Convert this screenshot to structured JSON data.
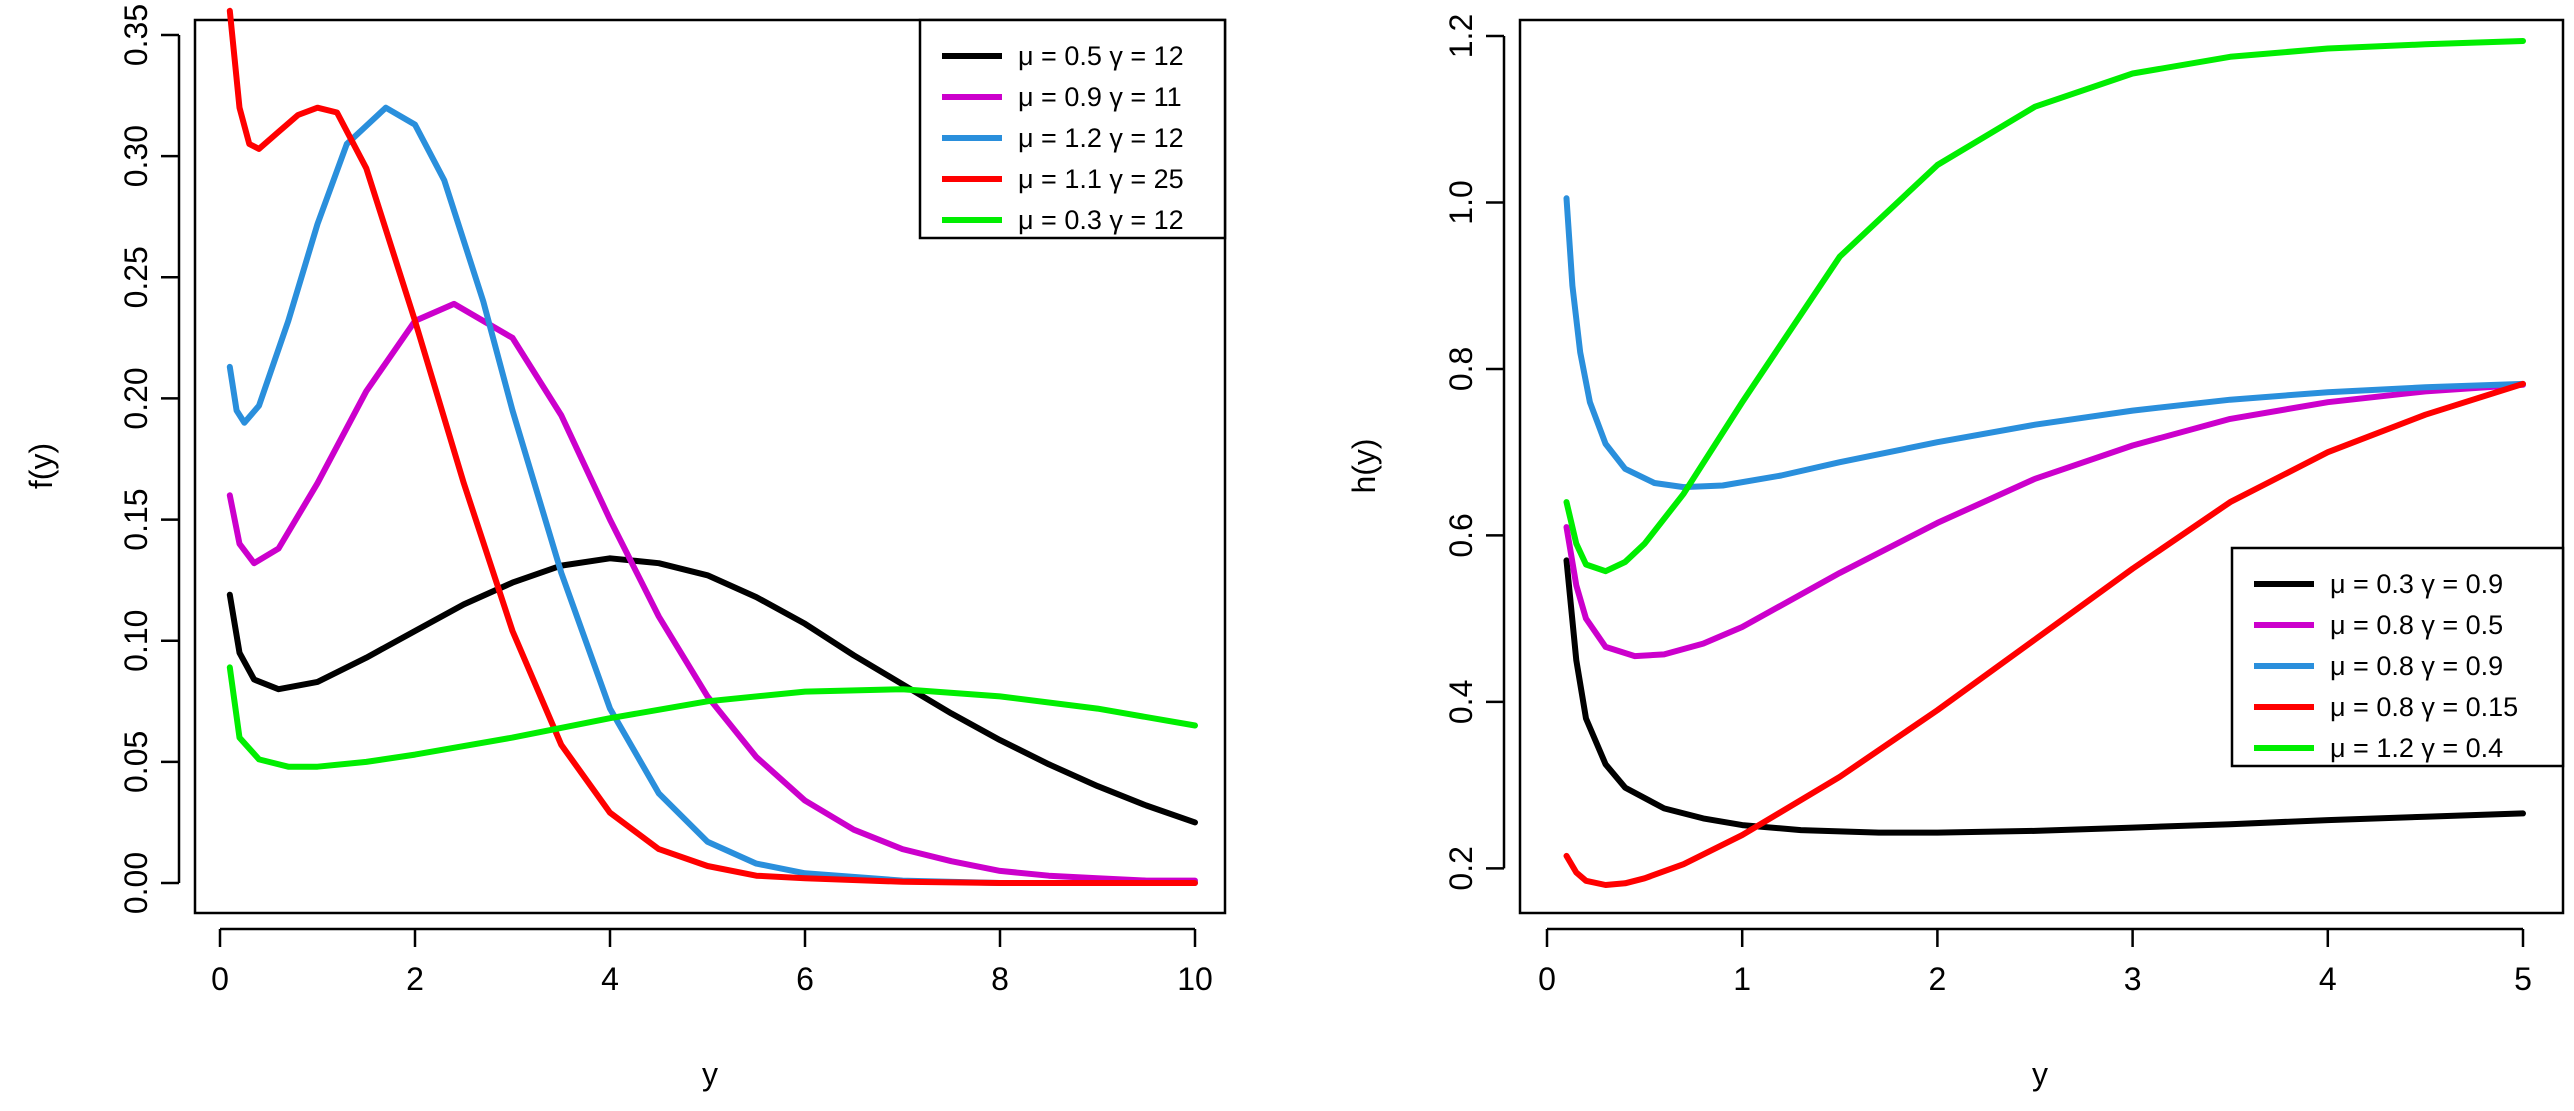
{
  "chart_data": [
    {
      "type": "line",
      "title": "",
      "xlabel": "y",
      "ylabel": "f(y)",
      "xlim": [
        0,
        10
      ],
      "ylim": [
        0,
        0.35
      ],
      "x_ticks": [
        0,
        2,
        4,
        6,
        8,
        10
      ],
      "y_ticks": [
        0.0,
        0.05,
        0.1,
        0.15,
        0.2,
        0.25,
        0.3,
        0.35
      ],
      "x_tick_labels": [
        "0",
        "2",
        "4",
        "6",
        "8",
        "10"
      ],
      "y_tick_labels": [
        "0.00",
        "0.05",
        "0.10",
        "0.15",
        "0.20",
        "0.25",
        "0.30",
        "0.35"
      ],
      "legend_position": "top-right",
      "series": [
        {
          "name": "μ = 0.5  γ = 12",
          "color": "#000000",
          "x": [
            0.1,
            0.2,
            0.35,
            0.6,
            1.0,
            1.5,
            2.0,
            2.5,
            3.0,
            3.5,
            4.0,
            4.5,
            5.0,
            5.5,
            6.0,
            6.5,
            7.0,
            7.5,
            8.0,
            8.5,
            9.0,
            9.5,
            10.0
          ],
          "y": [
            0.119,
            0.095,
            0.084,
            0.08,
            0.083,
            0.093,
            0.104,
            0.115,
            0.124,
            0.131,
            0.134,
            0.132,
            0.127,
            0.118,
            0.107,
            0.094,
            0.082,
            0.07,
            0.059,
            0.049,
            0.04,
            0.032,
            0.025
          ]
        },
        {
          "name": "μ = 0.9  γ = 11",
          "color": "#cc00cc",
          "x": [
            0.1,
            0.2,
            0.35,
            0.6,
            1.0,
            1.5,
            2.0,
            2.4,
            3.0,
            3.5,
            4.0,
            4.5,
            5.0,
            5.5,
            6.0,
            6.5,
            7.0,
            7.5,
            8.0,
            8.5,
            9.0,
            9.5,
            10.0
          ],
          "y": [
            0.16,
            0.14,
            0.132,
            0.138,
            0.165,
            0.203,
            0.232,
            0.239,
            0.225,
            0.193,
            0.15,
            0.11,
            0.077,
            0.052,
            0.034,
            0.022,
            0.014,
            0.009,
            0.005,
            0.003,
            0.002,
            0.001,
            0.001
          ]
        },
        {
          "name": "μ = 1.2  γ = 12",
          "color": "#2a8fdc",
          "x": [
            0.1,
            0.17,
            0.25,
            0.4,
            0.7,
            1.0,
            1.3,
            1.7,
            2.0,
            2.3,
            2.7,
            3.0,
            3.5,
            4.0,
            4.5,
            5.0,
            5.5,
            6.0,
            7.0,
            8.0,
            9.0,
            10.0
          ],
          "y": [
            0.213,
            0.195,
            0.19,
            0.197,
            0.232,
            0.272,
            0.305,
            0.32,
            0.313,
            0.29,
            0.24,
            0.195,
            0.128,
            0.072,
            0.037,
            0.017,
            0.008,
            0.004,
            0.001,
            0.0,
            0.0,
            0.0
          ]
        },
        {
          "name": "μ = 1.1  γ = 25",
          "color": "#ff0000",
          "x": [
            0.1,
            0.2,
            0.3,
            0.4,
            0.6,
            0.8,
            1.0,
            1.2,
            1.5,
            2.0,
            2.5,
            3.0,
            3.5,
            4.0,
            4.5,
            5.0,
            5.5,
            6.0,
            7.0,
            8.0,
            9.0,
            10.0
          ],
          "y": [
            0.36,
            0.32,
            0.305,
            0.303,
            0.31,
            0.317,
            0.32,
            0.318,
            0.295,
            0.232,
            0.165,
            0.104,
            0.057,
            0.029,
            0.014,
            0.007,
            0.003,
            0.002,
            0.0005,
            0.0,
            0.0,
            0.0
          ]
        },
        {
          "name": "μ = 0.3  γ = 12",
          "color": "#00ee00",
          "x": [
            0.1,
            0.2,
            0.4,
            0.7,
            1.0,
            1.5,
            2.0,
            3.0,
            4.0,
            5.0,
            6.0,
            7.0,
            8.0,
            9.0,
            10.0
          ],
          "y": [
            0.089,
            0.06,
            0.051,
            0.048,
            0.048,
            0.05,
            0.053,
            0.06,
            0.068,
            0.075,
            0.079,
            0.08,
            0.077,
            0.072,
            0.065
          ]
        }
      ]
    },
    {
      "type": "line",
      "title": "",
      "xlabel": "y",
      "ylabel": "h(y)",
      "xlim": [
        0,
        5
      ],
      "ylim": [
        0.18,
        1.2
      ],
      "x_ticks": [
        0,
        1,
        2,
        3,
        4,
        5
      ],
      "y_ticks": [
        0.2,
        0.4,
        0.6,
        0.8,
        1.0,
        1.2
      ],
      "x_tick_labels": [
        "0",
        "1",
        "2",
        "3",
        "4",
        "5"
      ],
      "y_tick_labels": [
        "0.2",
        "0.4",
        "0.6",
        "0.8",
        "1.0",
        "1.2"
      ],
      "legend_position": "right",
      "series": [
        {
          "name": "μ = 0.3  γ = 0.9",
          "color": "#000000",
          "x": [
            0.1,
            0.15,
            0.2,
            0.3,
            0.4,
            0.6,
            0.8,
            1.0,
            1.3,
            1.7,
            2.0,
            2.5,
            3.0,
            3.5,
            4.0,
            4.5,
            5.0
          ],
          "y": [
            0.57,
            0.45,
            0.38,
            0.325,
            0.297,
            0.272,
            0.26,
            0.252,
            0.246,
            0.243,
            0.243,
            0.245,
            0.249,
            0.253,
            0.258,
            0.262,
            0.266
          ]
        },
        {
          "name": "μ = 0.8  γ = 0.5",
          "color": "#cc00cc",
          "x": [
            0.1,
            0.15,
            0.2,
            0.3,
            0.45,
            0.6,
            0.8,
            1.0,
            1.5,
            2.0,
            2.5,
            3.0,
            3.5,
            4.0,
            4.5,
            5.0
          ],
          "y": [
            0.61,
            0.54,
            0.5,
            0.466,
            0.455,
            0.457,
            0.47,
            0.49,
            0.555,
            0.615,
            0.668,
            0.708,
            0.74,
            0.76,
            0.773,
            0.781
          ]
        },
        {
          "name": "μ = 0.8  γ = 0.9",
          "color": "#2a8fdc",
          "x": [
            0.1,
            0.13,
            0.17,
            0.22,
            0.3,
            0.4,
            0.55,
            0.7,
            0.9,
            1.2,
            1.5,
            2.0,
            2.5,
            3.0,
            3.5,
            4.0,
            4.5,
            5.0
          ],
          "y": [
            1.005,
            0.9,
            0.82,
            0.76,
            0.71,
            0.68,
            0.663,
            0.658,
            0.66,
            0.672,
            0.688,
            0.712,
            0.733,
            0.75,
            0.763,
            0.772,
            0.778,
            0.782
          ]
        },
        {
          "name": "μ = 0.8  γ = 0.15",
          "color": "#ff0000",
          "x": [
            0.1,
            0.15,
            0.2,
            0.3,
            0.4,
            0.5,
            0.7,
            1.0,
            1.5,
            2.0,
            2.5,
            3.0,
            3.5,
            4.0,
            4.5,
            5.0
          ],
          "y": [
            0.215,
            0.195,
            0.185,
            0.18,
            0.182,
            0.188,
            0.205,
            0.24,
            0.31,
            0.39,
            0.475,
            0.56,
            0.64,
            0.7,
            0.745,
            0.782
          ]
        },
        {
          "name": "μ = 1.2  γ = 0.4",
          "color": "#00ee00",
          "x": [
            0.1,
            0.15,
            0.2,
            0.3,
            0.4,
            0.5,
            0.7,
            1.0,
            1.5,
            2.0,
            2.5,
            3.0,
            3.5,
            4.0,
            4.5,
            5.0
          ],
          "y": [
            0.64,
            0.59,
            0.565,
            0.557,
            0.568,
            0.59,
            0.65,
            0.76,
            0.935,
            1.045,
            1.115,
            1.155,
            1.175,
            1.185,
            1.19,
            1.194
          ]
        }
      ]
    }
  ]
}
